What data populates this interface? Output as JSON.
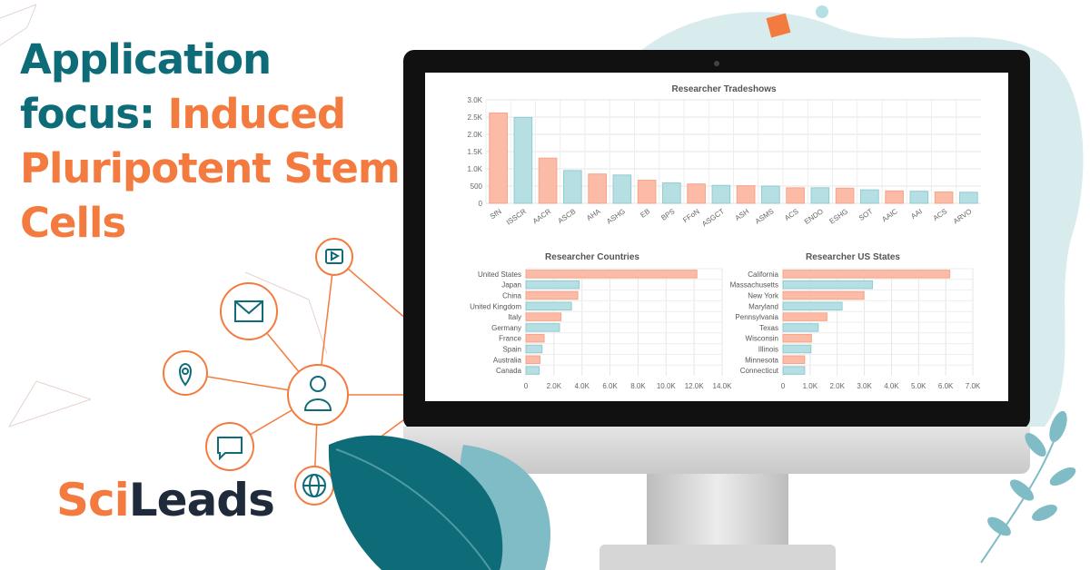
{
  "headline": {
    "line1": "Application",
    "line2a": "focus: ",
    "line2b": "Induced",
    "line3": "Pluripotent Stem",
    "line4": "Cells"
  },
  "logo": {
    "part1": "Sci",
    "part2": "Leads"
  },
  "colors": {
    "teal": "#0e6b78",
    "orange": "#f47b3f",
    "bar_orange": "#fbbba6",
    "bar_teal": "#b6dfe3",
    "blob": "#d8ecee"
  },
  "icons": [
    "play-icon",
    "mail-icon",
    "location-pin-icon",
    "user-icon",
    "chat-icon",
    "globe-icon"
  ],
  "chart_data": [
    {
      "type": "bar",
      "title": "Researcher Tradeshows",
      "orientation": "vertical",
      "ylim": [
        0,
        3000
      ],
      "yticks": [
        "0",
        "500",
        "1.0K",
        "1.5K",
        "2.0K",
        "2.5K",
        "3.0K"
      ],
      "grid": true,
      "categories": [
        "SfN",
        "ISSCR",
        "AACR",
        "ASCB",
        "AHA",
        "ASHG",
        "EB",
        "BPS",
        "FFoN",
        "ASGCT",
        "ASH",
        "ASMS",
        "ACS",
        "ENDO",
        "ESHG",
        "SOT",
        "AAIC",
        "AAI",
        "ACS",
        "ARVO"
      ],
      "values": [
        2620,
        2490,
        1310,
        950,
        850,
        820,
        670,
        590,
        560,
        520,
        510,
        500,
        450,
        450,
        440,
        390,
        360,
        350,
        330,
        320
      ]
    },
    {
      "type": "bar",
      "title": "Researcher Countries",
      "orientation": "horizontal",
      "xlim": [
        0,
        14000
      ],
      "xticks": [
        "0",
        "2.0K",
        "4.0K",
        "6.0K",
        "8.0K",
        "10.0K",
        "12.0K",
        "14.0K"
      ],
      "grid": true,
      "categories": [
        "United States",
        "Japan",
        "China",
        "United Kingdom",
        "Italy",
        "Germany",
        "France",
        "Spain",
        "Australia",
        "Canada"
      ],
      "values": [
        12200,
        3800,
        3700,
        3250,
        2500,
        2400,
        1300,
        1150,
        1000,
        950
      ]
    },
    {
      "type": "bar",
      "title": "Researcher US States",
      "orientation": "horizontal",
      "xlim": [
        0,
        7000
      ],
      "xticks": [
        "0",
        "1.0K",
        "2.0K",
        "3.0K",
        "4.0K",
        "5.0K",
        "6.0K",
        "7.0K"
      ],
      "grid": true,
      "categories": [
        "California",
        "Massachusetts",
        "New York",
        "Maryland",
        "Pennsylvania",
        "Texas",
        "Wisconsin",
        "Illinois",
        "Minnesota",
        "Connecticut"
      ],
      "values": [
        6150,
        3300,
        2980,
        2180,
        1620,
        1300,
        1050,
        1030,
        800,
        800
      ]
    }
  ]
}
